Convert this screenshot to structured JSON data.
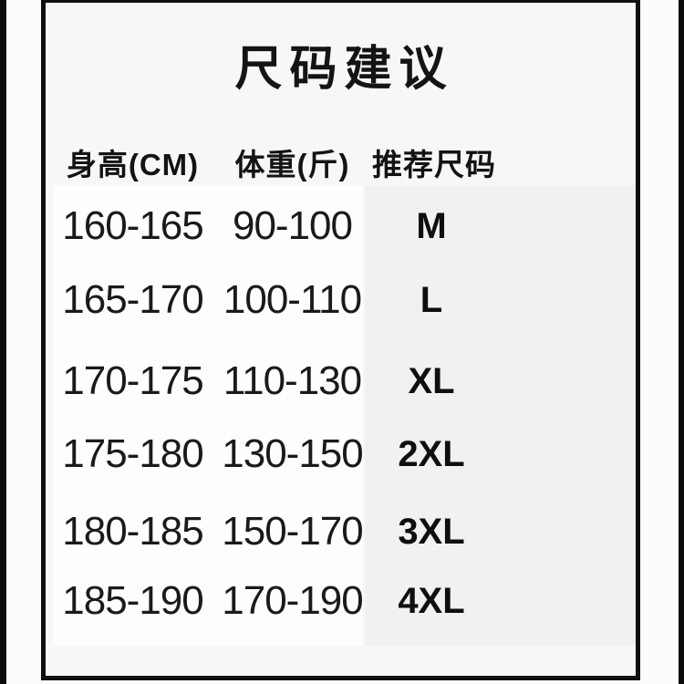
{
  "title": "尺码建议",
  "table": {
    "headers": [
      "身高(CM)",
      "体重(斤)",
      "推荐尺码"
    ],
    "rows": [
      {
        "height": "160-165",
        "weight": "90-100",
        "size": "M"
      },
      {
        "height": "165-170",
        "weight": "100-110",
        "size": "L"
      },
      {
        "height": "170-175",
        "weight": "110-130",
        "size": "XL"
      },
      {
        "height": "175-180",
        "weight": "130-150",
        "size": "2XL"
      },
      {
        "height": "180-185",
        "weight": "150-170",
        "size": "3XL"
      },
      {
        "height": "185-190",
        "weight": "170-190",
        "size": "4XL"
      }
    ]
  },
  "colors": {
    "frame_border": "#101010",
    "edge_strip": "#0b0b0b",
    "text": "#141414",
    "frame_background": "#f7f7f7",
    "page_background": "#fcfcfc"
  }
}
